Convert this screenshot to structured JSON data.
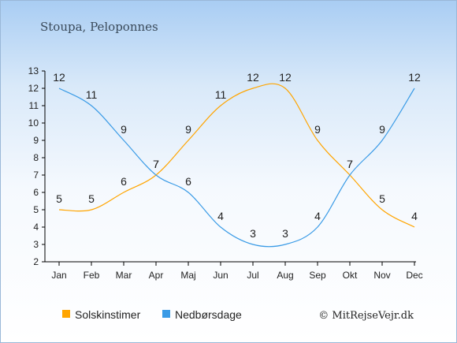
{
  "title": "Stoupa, Peloponnes",
  "credit": "© MitRejseVejr.dk",
  "colors": {
    "sun": "#ffa500",
    "rain": "#3a9be6",
    "axis": "#000000"
  },
  "chart_data": {
    "type": "line",
    "categories": [
      "Jan",
      "Feb",
      "Mar",
      "Apr",
      "Maj",
      "Jun",
      "Jul",
      "Aug",
      "Sep",
      "Okt",
      "Nov",
      "Dec"
    ],
    "ylim": [
      2,
      13
    ],
    "yticks": [
      2,
      3,
      4,
      5,
      6,
      7,
      8,
      9,
      10,
      11,
      12,
      13
    ],
    "grid": false,
    "legend_position": "bottom-left",
    "series": [
      {
        "name": "Solskinstimer",
        "color": "#ffa500",
        "values": [
          5,
          5,
          6,
          7,
          9,
          11,
          12,
          12,
          9,
          7,
          5,
          4
        ]
      },
      {
        "name": "Nedbørsdage",
        "color": "#3a9be6",
        "values": [
          12,
          11,
          9,
          7,
          6,
          4,
          3,
          3,
          4,
          7,
          9,
          12
        ]
      }
    ]
  }
}
